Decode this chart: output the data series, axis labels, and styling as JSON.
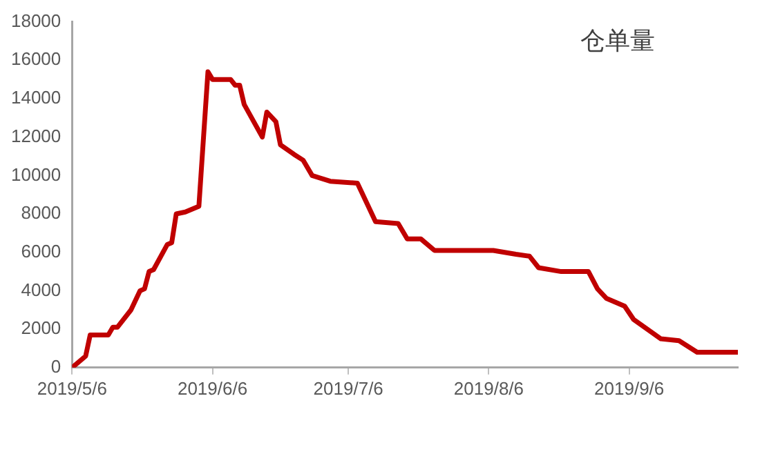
{
  "chart_data": {
    "type": "line",
    "title": "仓单量",
    "x": [
      "2019-05-06",
      "2019-05-09",
      "2019-05-10",
      "2019-05-14",
      "2019-05-15",
      "2019-05-16",
      "2019-05-19",
      "2019-05-21",
      "2019-05-22",
      "2019-05-23",
      "2019-05-24",
      "2019-05-27",
      "2019-05-28",
      "2019-05-29",
      "2019-05-31",
      "2019-06-03",
      "2019-06-05",
      "2019-06-06",
      "2019-06-10",
      "2019-06-11",
      "2019-06-12",
      "2019-06-13",
      "2019-06-17",
      "2019-06-18",
      "2019-06-20",
      "2019-06-21",
      "2019-06-24",
      "2019-06-26",
      "2019-06-28",
      "2019-07-02",
      "2019-07-08",
      "2019-07-12",
      "2019-07-17",
      "2019-07-19",
      "2019-07-22",
      "2019-07-25",
      "2019-08-07",
      "2019-08-12",
      "2019-08-15",
      "2019-08-17",
      "2019-08-22",
      "2019-08-28",
      "2019-08-30",
      "2019-09-01",
      "2019-09-05",
      "2019-09-07",
      "2019-09-10",
      "2019-09-13",
      "2019-09-17",
      "2019-09-21",
      "2019-09-30"
    ],
    "series": [
      {
        "color": "#c00000",
        "values": [
          0,
          600,
          1700,
          1700,
          2100,
          2100,
          3000,
          4000,
          4100,
          5000,
          5100,
          6400,
          6500,
          8000,
          8100,
          8400,
          15400,
          15000,
          15000,
          14700,
          14700,
          13700,
          12000,
          13300,
          12800,
          11600,
          11100,
          10800,
          10000,
          9700,
          9600,
          7600,
          7500,
          6700,
          6700,
          6100,
          6100,
          5900,
          5800,
          5200,
          5000,
          5000,
          4100,
          3600,
          3200,
          2500,
          2000,
          1500,
          1400,
          800,
          800
        ]
      }
    ],
    "xlim": [
      "2019-05-06",
      "2019-09-30"
    ],
    "xticks": [
      {
        "value": "2019-05-06",
        "label": "2019/5/6"
      },
      {
        "value": "2019-06-06",
        "label": "2019/6/6"
      },
      {
        "value": "2019-07-06",
        "label": "2019/7/6"
      },
      {
        "value": "2019-08-06",
        "label": "2019/8/6"
      },
      {
        "value": "2019-09-06",
        "label": "2019/9/6"
      }
    ],
    "ylim": [
      0,
      18000
    ],
    "yticks": [
      0,
      2000,
      4000,
      6000,
      8000,
      10000,
      12000,
      14000,
      16000,
      18000
    ],
    "grid": false,
    "legend": false,
    "marker": "none",
    "line_style": "solid"
  }
}
